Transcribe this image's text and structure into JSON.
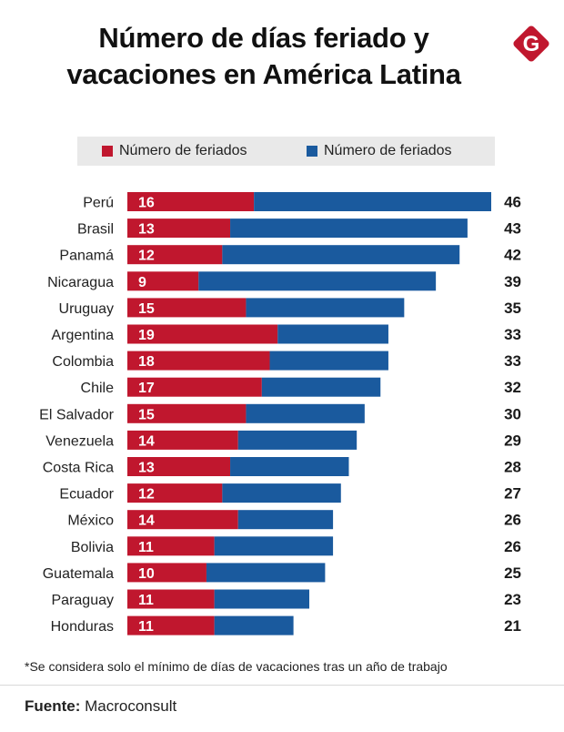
{
  "title_line1": "Número de días feriado y",
  "title_line2": "vacaciones en América Latina",
  "logo_letter": "G",
  "legend": [
    {
      "label": "Número de feriados",
      "color": "#c0172e"
    },
    {
      "label": "Número de feriados",
      "color": "#1a5a9e"
    }
  ],
  "chart_data": {
    "type": "bar",
    "orientation": "horizontal",
    "stacked": true,
    "categories": [
      "Perú",
      "Brasil",
      "Panamá",
      "Nicaragua",
      "Uruguay",
      "Argentina",
      "Colombia",
      "Chile",
      "El Salvador",
      "Venezuela",
      "Costa Rica",
      "Ecuador",
      "México",
      "Bolivia",
      "Guatemala",
      "Paraguay",
      "Honduras"
    ],
    "series": [
      {
        "name": "Número de feriados",
        "color": "#c0172e",
        "values": [
          16,
          13,
          12,
          9,
          15,
          19,
          18,
          17,
          15,
          14,
          13,
          12,
          14,
          11,
          10,
          11,
          11
        ]
      },
      {
        "name": "Número de feriados",
        "color": "#1a5a9e",
        "values": [
          30,
          30,
          30,
          30,
          20,
          14,
          15,
          15,
          15,
          15,
          15,
          15,
          12,
          15,
          15,
          12,
          10
        ]
      }
    ],
    "totals": [
      46,
      43,
      42,
      39,
      35,
      33,
      33,
      32,
      30,
      29,
      28,
      27,
      26,
      26,
      25,
      23,
      21
    ],
    "xlim": [
      0,
      46
    ],
    "grid": false
  },
  "note": "*Se considera solo el mínimo de días de vacaciones tras un año de trabajo",
  "source_label": "Fuente:",
  "source_value": " Macroconsult"
}
